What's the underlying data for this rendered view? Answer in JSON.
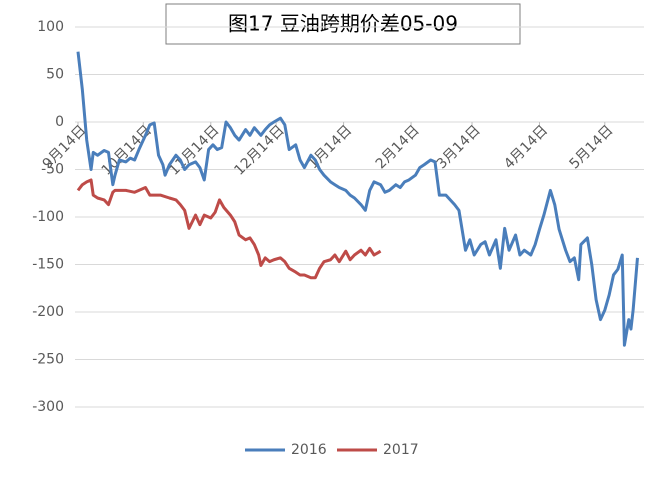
{
  "chart_data": {
    "type": "line",
    "title": "图17 豆油跨期价差05-09",
    "xlim": [
      0,
      260
    ],
    "xticks": [
      {
        "value": 0,
        "label": "9月14日"
      },
      {
        "value": 30,
        "label": "10月14日"
      },
      {
        "value": 61,
        "label": "11月14日"
      },
      {
        "value": 91,
        "label": "12月14日"
      },
      {
        "value": 122,
        "label": "1月14日"
      },
      {
        "value": 153,
        "label": "2月14日"
      },
      {
        "value": 181,
        "label": "3月14日"
      },
      {
        "value": 212,
        "label": "4月14日"
      },
      {
        "value": 242,
        "label": "5月14日"
      }
    ],
    "ylim": [
      -300,
      100
    ],
    "yticks": [
      100,
      50,
      0,
      -50,
      -100,
      -150,
      -200,
      -250,
      -300
    ],
    "grid": true,
    "legend": "bottom",
    "series": [
      {
        "name": "2016",
        "color": "#4a7ebb",
        "x": [
          0,
          2,
          4,
          6,
          7,
          9,
          12,
          14,
          16,
          17,
          19,
          22,
          24,
          26,
          28,
          31,
          33,
          35,
          37,
          39,
          40,
          42,
          45,
          47,
          49,
          51,
          54,
          56,
          58,
          60,
          62,
          64,
          66,
          68,
          70,
          72,
          74,
          77,
          79,
          81,
          84,
          86,
          88,
          90,
          93,
          95,
          97,
          100,
          102,
          104,
          107,
          109,
          111,
          113,
          116,
          118,
          120,
          123,
          125,
          127,
          130,
          132,
          134,
          136,
          139,
          141,
          143,
          146,
          148,
          150,
          152,
          155,
          157,
          159,
          162,
          164,
          166,
          169,
          171,
          173,
          175,
          178,
          180,
          182,
          185,
          187,
          189,
          192,
          194,
          196,
          198,
          201,
          203,
          205,
          208,
          210,
          212,
          214,
          217,
          219,
          221,
          224,
          226,
          228,
          230,
          231,
          234,
          236,
          238,
          240,
          242,
          244,
          246,
          248,
          250,
          251,
          253,
          254,
          255,
          257
        ],
        "values": [
          74,
          34,
          -19,
          -50,
          -32,
          -35,
          -30,
          -32,
          -66,
          -56,
          -40,
          -42,
          -38,
          -40,
          -29,
          -14,
          -3,
          -1,
          -35,
          -45,
          -56,
          -45,
          -35,
          -40,
          -50,
          -45,
          -42,
          -48,
          -61,
          -29,
          -24,
          -29,
          -27,
          0,
          -6,
          -14,
          -19,
          -8,
          -14,
          -6,
          -14,
          -8,
          -3,
          0,
          4,
          -3,
          -29,
          -24,
          -40,
          -48,
          -35,
          -40,
          -50,
          -56,
          -63,
          -66,
          -69,
          -72,
          -77,
          -80,
          -87,
          -93,
          -72,
          -63,
          -66,
          -74,
          -72,
          -66,
          -69,
          -63,
          -61,
          -56,
          -48,
          -45,
          -40,
          -42,
          -77,
          -77,
          -82,
          -87,
          -93,
          -135,
          -124,
          -140,
          -129,
          -126,
          -140,
          -124,
          -154,
          -112,
          -135,
          -119,
          -140,
          -135,
          -140,
          -129,
          -113,
          -98,
          -72,
          -87,
          -113,
          -135,
          -147,
          -143,
          -166,
          -129,
          -122,
          -150,
          -187,
          -208,
          -198,
          -182,
          -161,
          -155,
          -140,
          -235,
          -208,
          -218,
          -198,
          -143
        ]
      },
      {
        "name": "2017",
        "color": "#be4b48",
        "x": [
          0,
          2,
          4,
          6,
          7,
          9,
          12,
          14,
          16,
          17,
          22,
          26,
          31,
          33,
          38,
          42,
          45,
          47,
          49,
          51,
          54,
          56,
          58,
          61,
          63,
          65,
          67,
          70,
          72,
          74,
          77,
          79,
          81,
          83,
          84,
          86,
          88,
          90,
          93,
          95,
          97,
          100,
          102,
          104,
          107,
          109,
          111,
          113,
          116,
          118,
          120,
          123,
          125,
          127,
          130,
          132,
          134,
          136,
          139
        ],
        "values": [
          -72,
          -66,
          -63,
          -61,
          -77,
          -80,
          -82,
          -87,
          -74,
          -72,
          -72,
          -74,
          -69,
          -77,
          -77,
          -80,
          -82,
          -87,
          -93,
          -112,
          -98,
          -108,
          -98,
          -101,
          -95,
          -82,
          -90,
          -98,
          -105,
          -119,
          -124,
          -122,
          -129,
          -140,
          -151,
          -143,
          -147,
          -145,
          -143,
          -147,
          -154,
          -158,
          -161,
          -161,
          -164,
          -164,
          -154,
          -147,
          -145,
          -140,
          -147,
          -136,
          -145,
          -140,
          -135,
          -140,
          -133,
          -140,
          -136
        ]
      }
    ]
  }
}
